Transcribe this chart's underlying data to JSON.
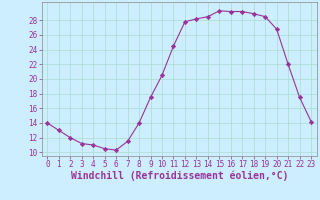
{
  "x": [
    0,
    1,
    2,
    3,
    4,
    5,
    6,
    7,
    8,
    9,
    10,
    11,
    12,
    13,
    14,
    15,
    16,
    17,
    18,
    19,
    20,
    21,
    22,
    23
  ],
  "y": [
    14,
    13,
    12,
    11.2,
    11,
    10.5,
    10.3,
    11.5,
    14,
    17.5,
    20.5,
    24.5,
    27.8,
    28.2,
    28.5,
    29.3,
    29.2,
    29.2,
    28.9,
    28.5,
    26.8,
    22,
    17.5,
    14.2
  ],
  "line_color": "#993399",
  "marker": "D",
  "marker_size": 2.2,
  "bg_color": "#cceeff",
  "grid_color": "#aaddcc",
  "xlabel": "Windchill (Refroidissement éolien,°C)",
  "xlabel_color": "#993399",
  "tick_color": "#993399",
  "ylim": [
    9.5,
    30.5
  ],
  "xlim": [
    -0.5,
    23.5
  ],
  "yticks": [
    10,
    12,
    14,
    16,
    18,
    20,
    22,
    24,
    26,
    28
  ],
  "xticks": [
    0,
    1,
    2,
    3,
    4,
    5,
    6,
    7,
    8,
    9,
    10,
    11,
    12,
    13,
    14,
    15,
    16,
    17,
    18,
    19,
    20,
    21,
    22,
    23
  ],
  "tick_fontsize": 5.5,
  "xlabel_fontsize": 7.0
}
